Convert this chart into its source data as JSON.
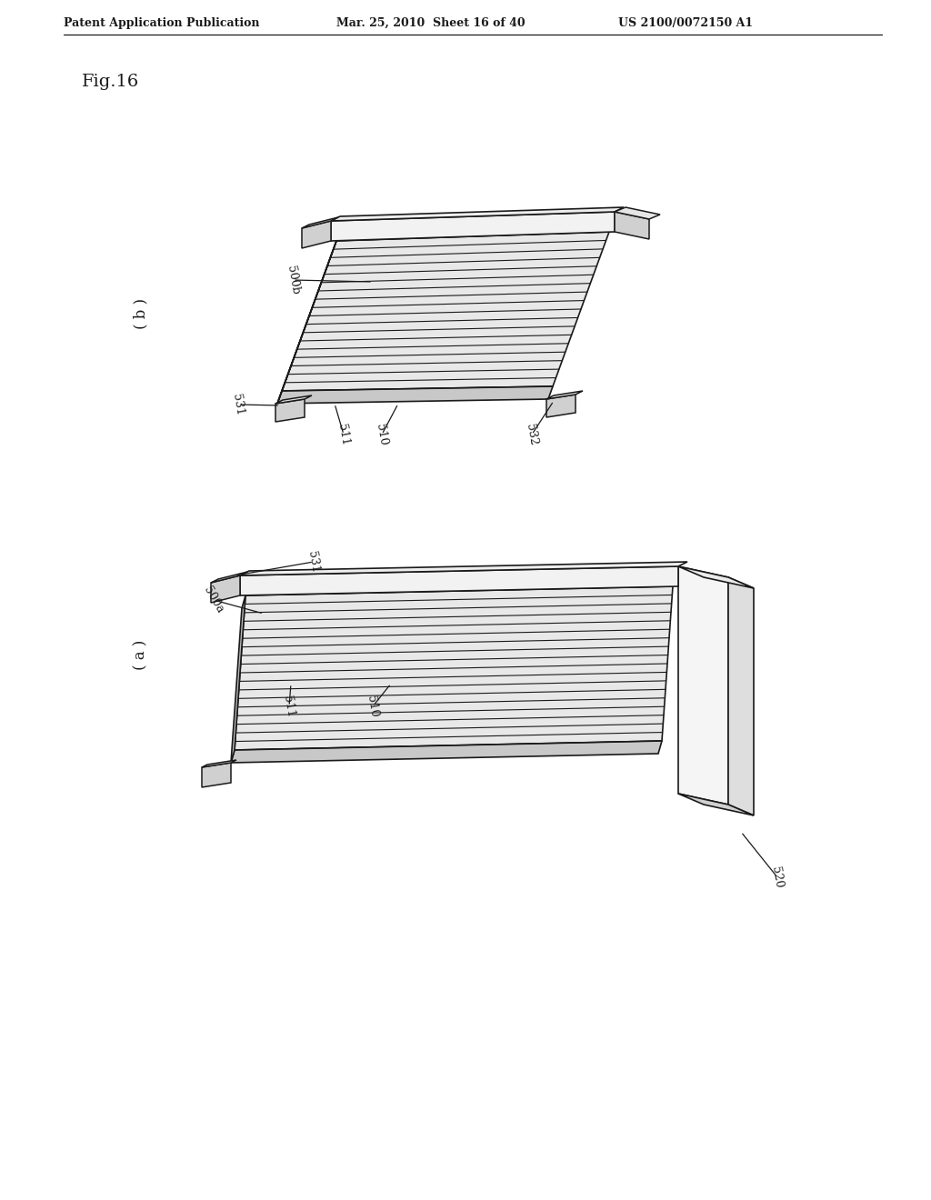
{
  "background_color": "#ffffff",
  "line_color": "#1a1a1a",
  "header_left": "Patent Application Publication",
  "header_mid": "Mar. 25, 2010  Sheet 16 of 40",
  "header_right": "US 2100/0072150 A1",
  "fig_label": "Fig.16",
  "panel_a_label": "( a )",
  "panel_b_label": "( b )",
  "num_ribs": 18,
  "gray_top": "#e8e8e8",
  "gray_front": "#c8c8c8",
  "gray_left": "#b8b8b8",
  "gray_bar": "#f2f2f2",
  "gray_bracket": "#d0d0d0",
  "gray_panel_face": "#f5f5f5",
  "gray_panel_side": "#dedede",
  "gray_panel_top": "#ebebeb"
}
